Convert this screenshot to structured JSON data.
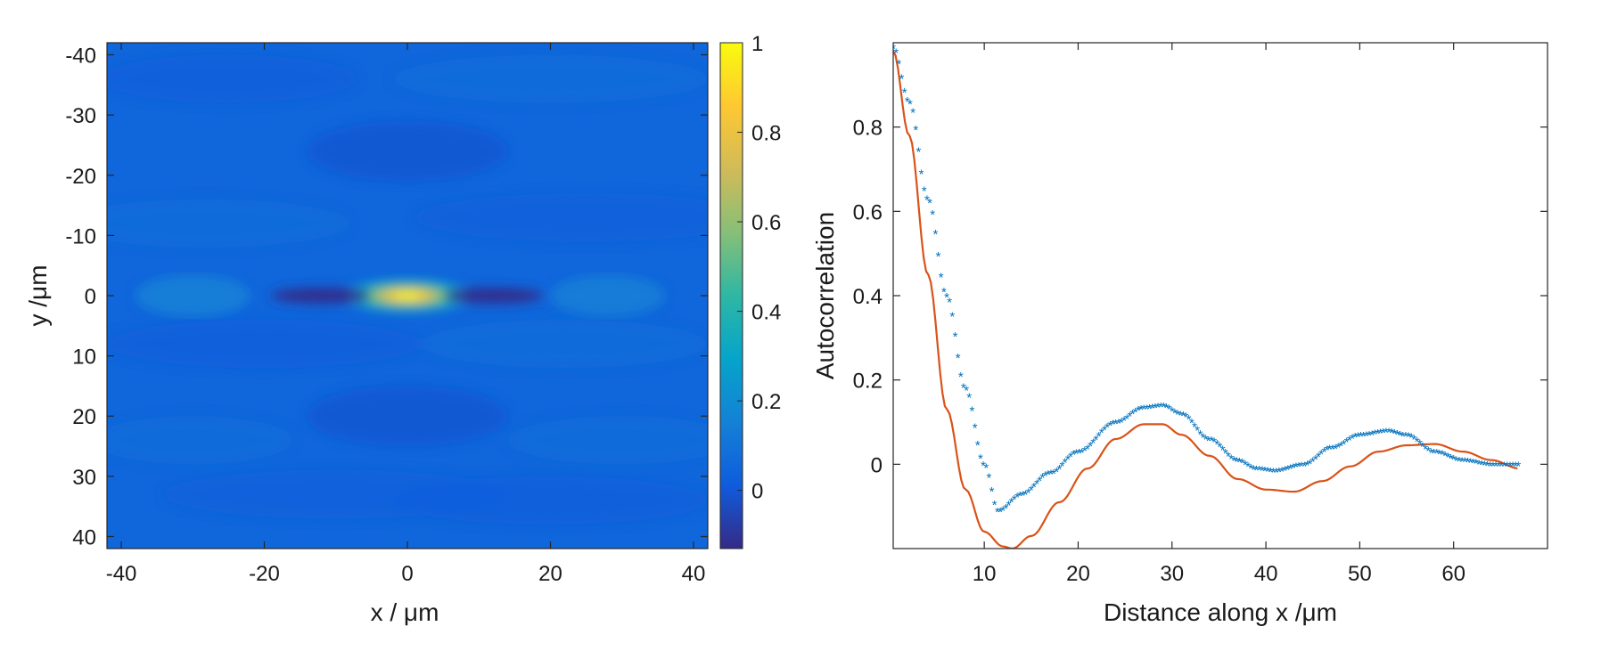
{
  "chart_data": [
    {
      "type": "heatmap",
      "xlabel": "x / μm",
      "ylabel": "y /μm",
      "xlim": [
        -42,
        42
      ],
      "ylim": [
        -42,
        42
      ],
      "y_axis_direction": "reversed (-40 at top, 40 at bottom)",
      "x_ticks": [
        "-40",
        "-20",
        "0",
        "20",
        "40"
      ],
      "y_ticks": [
        "-40",
        "-30",
        "-20",
        "-10",
        "0",
        "10",
        "20",
        "30",
        "40"
      ],
      "colormap": "parula",
      "colorbar": {
        "range": [
          -0.13,
          1
        ],
        "ticks": [
          "1",
          "0.8",
          "0.6",
          "0.4",
          "0.2",
          "0"
        ],
        "colors": [
          "#352a87",
          "#0f5cdd",
          "#1481d6",
          "#06a4ca",
          "#2eb7a4",
          "#87bf77",
          "#d1bb59",
          "#fec832",
          "#f9fb0e"
        ]
      },
      "features": [
        {
          "x": 0,
          "y": 0,
          "value": 1.0,
          "note": "central peak, elongated along x"
        },
        {
          "x": -12,
          "y": 0,
          "value": -0.12
        },
        {
          "x": 12,
          "y": 0,
          "value": -0.12
        },
        {
          "x": -30,
          "y": 0,
          "value": 0.14
        },
        {
          "x": 28,
          "y": 0,
          "value": 0.13
        }
      ],
      "background_value": 0.05
    },
    {
      "type": "line",
      "xlabel": "Distance along x /μm",
      "ylabel": "Autocorrelation",
      "xlim": [
        0.3,
        70
      ],
      "ylim": [
        -0.2,
        1.0
      ],
      "x_ticks": [
        "10",
        "20",
        "30",
        "40",
        "50",
        "60"
      ],
      "y_ticks": [
        "0.8",
        "0.6",
        "0.4",
        "0.2",
        "0"
      ],
      "series": [
        {
          "style": "markers",
          "marker": "*",
          "color": "#0072bd",
          "x_range": [
            0.3,
            67
          ],
          "x_step": 0.3,
          "x": [
            0.3,
            2,
            4,
            6,
            8,
            10,
            11.5,
            14,
            17,
            20,
            24,
            27,
            29,
            31,
            34,
            37,
            39,
            41,
            44,
            47,
            50,
            53,
            55,
            58,
            61,
            64,
            67
          ],
          "y": [
            0.99,
            0.86,
            0.63,
            0.4,
            0.18,
            0.0,
            -0.11,
            -0.07,
            -0.02,
            0.03,
            0.1,
            0.135,
            0.14,
            0.12,
            0.06,
            0.01,
            -0.01,
            -0.015,
            -0.0,
            0.04,
            0.07,
            0.08,
            0.07,
            0.03,
            0.01,
            0.0,
            0.0
          ]
        },
        {
          "style": "line",
          "color": "#d95319",
          "x": [
            0.3,
            2,
            4,
            6,
            8,
            10,
            12,
            13,
            15,
            18,
            21,
            24,
            27,
            29,
            31,
            34,
            37,
            40,
            43,
            46,
            49,
            52,
            55,
            58,
            61,
            64,
            67
          ],
          "y": [
            0.98,
            0.78,
            0.45,
            0.13,
            -0.06,
            -0.16,
            -0.195,
            -0.2,
            -0.17,
            -0.09,
            -0.01,
            0.06,
            0.095,
            0.095,
            0.07,
            0.02,
            -0.035,
            -0.06,
            -0.065,
            -0.04,
            -0.005,
            0.03,
            0.045,
            0.048,
            0.03,
            0.01,
            -0.01
          ]
        }
      ]
    }
  ]
}
